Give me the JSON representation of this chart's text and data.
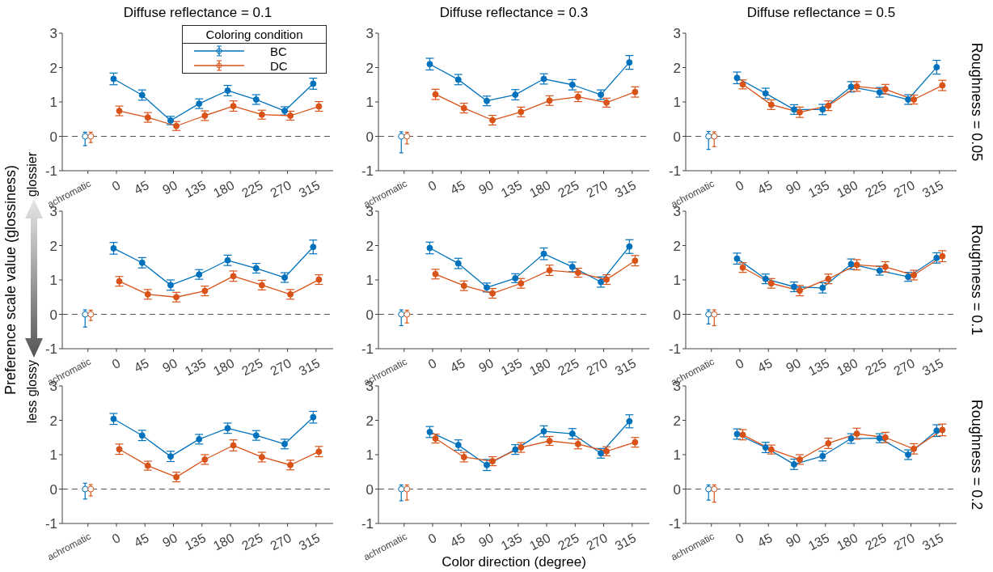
{
  "chart_data": [
    {
      "type": "line",
      "title": "Diffuse reflectance = 0.1",
      "categories": [
        "achromatic",
        "0",
        "45",
        "90",
        "135",
        "180",
        "225",
        "270",
        "315"
      ],
      "ylim": [
        -1,
        3
      ],
      "yticks": [
        -1,
        0,
        1,
        2,
        3
      ],
      "marker": "circle",
      "legend": "top right",
      "legend_title": "Coloring condition",
      "ref_lines": [
        {
          "axis": "y",
          "value": 0,
          "line_style": "dashed"
        }
      ],
      "series": [
        {
          "name": "BC",
          "color": "#0072bd",
          "values": [
            null,
            1.67,
            1.2,
            0.46,
            0.95,
            1.33,
            1.07,
            0.74,
            1.53
          ],
          "errors": [
            null,
            0.17,
            0.15,
            0.12,
            0.14,
            0.15,
            0.14,
            0.12,
            0.16
          ]
        },
        {
          "name": "DC",
          "color": "#d95319",
          "values": [
            null,
            0.74,
            0.55,
            0.3,
            0.6,
            0.88,
            0.63,
            0.6,
            0.87
          ],
          "errors": [
            null,
            0.14,
            0.14,
            0.13,
            0.14,
            0.15,
            0.13,
            0.13,
            0.14
          ]
        },
        {
          "type": "scatter",
          "color": "#0072bd",
          "x": [
            "achromatic"
          ],
          "values": [
            0
          ],
          "errors": [
            [
              -0.27,
              0.12
            ]
          ]
        },
        {
          "type": "scatter",
          "color": "#d95319",
          "x": [
            "achromatic"
          ],
          "values": [
            0
          ],
          "errors": [
            [
              -0.18,
              0.12
            ]
          ]
        }
      ]
    },
    {
      "type": "line",
      "title": "Diffuse reflectance = 0.3",
      "categories": [
        "achromatic",
        "0",
        "45",
        "90",
        "135",
        "180",
        "225",
        "270",
        "315"
      ],
      "ylim": [
        -1,
        3
      ],
      "yticks": [
        -1,
        0,
        1,
        2,
        3
      ],
      "marker": "circle",
      "ref_lines": [
        {
          "axis": "y",
          "value": 0,
          "line_style": "dashed"
        }
      ],
      "series": [
        {
          "color": "#0072bd",
          "values": [
            null,
            2.1,
            1.65,
            1.03,
            1.21,
            1.67,
            1.5,
            1.21,
            2.15
          ],
          "errors": [
            null,
            0.17,
            0.15,
            0.14,
            0.15,
            0.15,
            0.15,
            0.14,
            0.2
          ]
        },
        {
          "color": "#d95319",
          "values": [
            null,
            1.22,
            0.82,
            0.47,
            0.71,
            1.04,
            1.15,
            0.98,
            1.29
          ],
          "errors": [
            null,
            0.15,
            0.14,
            0.14,
            0.14,
            0.14,
            0.14,
            0.13,
            0.15
          ]
        },
        {
          "type": "scatter",
          "color": "#0072bd",
          "x": [
            "achromatic"
          ],
          "values": [
            0
          ],
          "errors": [
            [
              -0.48,
              0.13
            ]
          ]
        },
        {
          "type": "scatter",
          "color": "#d95319",
          "x": [
            "achromatic"
          ],
          "values": [
            0
          ],
          "errors": [
            [
              -0.22,
              0.12
            ]
          ]
        }
      ]
    },
    {
      "type": "line",
      "title": "Diffuse reflectance = 0.5",
      "categories": [
        "achromatic",
        "0",
        "45",
        "90",
        "135",
        "180",
        "225",
        "270",
        "315"
      ],
      "ylim": [
        -1,
        3
      ],
      "yticks": [
        -1,
        0,
        1,
        2,
        3
      ],
      "marker": "circle",
      "ref_lines": [
        {
          "axis": "y",
          "value": 0,
          "line_style": "dashed"
        }
      ],
      "annotations": [
        "Roughness = 0.05"
      ],
      "series": [
        {
          "color": "#0072bd",
          "values": [
            null,
            1.7,
            1.25,
            0.78,
            0.78,
            1.44,
            1.28,
            1.07,
            2.01
          ],
          "errors": [
            null,
            0.17,
            0.15,
            0.14,
            0.15,
            0.15,
            0.14,
            0.14,
            0.2
          ]
        },
        {
          "color": "#d95319",
          "values": [
            null,
            1.51,
            0.92,
            0.7,
            0.89,
            1.45,
            1.37,
            1.07,
            1.48
          ],
          "errors": [
            null,
            0.13,
            0.14,
            0.15,
            0.14,
            0.14,
            0.14,
            0.13,
            0.15
          ]
        },
        {
          "type": "scatter",
          "color": "#0072bd",
          "x": [
            "achromatic"
          ],
          "values": [
            0
          ],
          "errors": [
            [
              -0.38,
              0.14
            ]
          ]
        },
        {
          "type": "scatter",
          "color": "#d95319",
          "x": [
            "achromatic"
          ],
          "values": [
            0
          ],
          "errors": [
            [
              -0.3,
              0.13
            ]
          ]
        }
      ]
    },
    {
      "type": "line",
      "categories": [
        "achromatic",
        "0",
        "45",
        "90",
        "135",
        "180",
        "225",
        "270",
        "315"
      ],
      "ylim": [
        -1,
        3
      ],
      "yticks": [
        -1,
        0,
        1,
        2,
        3
      ],
      "marker": "circle",
      "ylabel": "Preference scale value (glossiness)",
      "annotations": [
        "glossier",
        "less glossy"
      ],
      "ref_lines": [
        {
          "axis": "y",
          "value": 0,
          "line_style": "dashed"
        }
      ],
      "series": [
        {
          "color": "#0072bd",
          "values": [
            null,
            1.92,
            1.5,
            0.85,
            1.16,
            1.57,
            1.34,
            1.07,
            1.96
          ],
          "errors": [
            null,
            0.17,
            0.15,
            0.15,
            0.14,
            0.15,
            0.14,
            0.14,
            0.2
          ]
        },
        {
          "color": "#d95319",
          "values": [
            null,
            0.96,
            0.58,
            0.5,
            0.68,
            1.11,
            0.85,
            0.58,
            1.01
          ],
          "errors": [
            null,
            0.14,
            0.14,
            0.14,
            0.14,
            0.15,
            0.14,
            0.14,
            0.14
          ]
        },
        {
          "type": "scatter",
          "color": "#0072bd",
          "x": [
            "achromatic"
          ],
          "values": [
            0
          ],
          "errors": [
            [
              -0.37,
              0.13
            ]
          ]
        },
        {
          "type": "scatter",
          "color": "#d95319",
          "x": [
            "achromatic"
          ],
          "values": [
            0
          ],
          "errors": [
            [
              -0.18,
              0.12
            ]
          ]
        }
      ]
    },
    {
      "type": "line",
      "categories": [
        "achromatic",
        "0",
        "45",
        "90",
        "135",
        "180",
        "225",
        "270",
        "315"
      ],
      "ylim": [
        -1,
        3
      ],
      "yticks": [
        -1,
        0,
        1,
        2,
        3
      ],
      "marker": "circle",
      "ref_lines": [
        {
          "axis": "y",
          "value": 0,
          "line_style": "dashed"
        }
      ],
      "series": [
        {
          "color": "#0072bd",
          "values": [
            null,
            1.93,
            1.48,
            0.78,
            1.05,
            1.76,
            1.38,
            0.94,
            1.97
          ],
          "errors": [
            null,
            0.17,
            0.15,
            0.13,
            0.13,
            0.17,
            0.14,
            0.15,
            0.2
          ]
        },
        {
          "color": "#d95319",
          "values": [
            null,
            1.17,
            0.83,
            0.61,
            0.9,
            1.28,
            1.21,
            1.01,
            1.56
          ],
          "errors": [
            null,
            0.14,
            0.14,
            0.14,
            0.14,
            0.15,
            0.13,
            0.14,
            0.15
          ]
        },
        {
          "type": "scatter",
          "color": "#0072bd",
          "x": [
            "achromatic"
          ],
          "values": [
            0
          ],
          "errors": [
            [
              -0.33,
              0.13
            ]
          ]
        },
        {
          "type": "scatter",
          "color": "#d95319",
          "x": [
            "achromatic"
          ],
          "values": [
            0
          ],
          "errors": [
            [
              -0.25,
              0.12
            ]
          ]
        }
      ]
    },
    {
      "type": "line",
      "categories": [
        "achromatic",
        "0",
        "45",
        "90",
        "135",
        "180",
        "225",
        "270",
        "315"
      ],
      "ylim": [
        -1,
        3
      ],
      "yticks": [
        -1,
        0,
        1,
        2,
        3
      ],
      "marker": "circle",
      "ref_lines": [
        {
          "axis": "y",
          "value": 0,
          "line_style": "dashed"
        }
      ],
      "annotations": [
        "Roughness = 0.1"
      ],
      "series": [
        {
          "color": "#0072bd",
          "values": [
            null,
            1.62,
            1.03,
            0.8,
            0.77,
            1.46,
            1.27,
            1.09,
            1.64
          ],
          "errors": [
            null,
            0.16,
            0.14,
            0.14,
            0.15,
            0.15,
            0.13,
            0.13,
            0.15
          ]
        },
        {
          "color": "#d95319",
          "values": [
            null,
            1.36,
            0.9,
            0.69,
            1.03,
            1.44,
            1.38,
            1.14,
            1.69
          ],
          "errors": [
            null,
            0.14,
            0.14,
            0.15,
            0.14,
            0.15,
            0.15,
            0.14,
            0.16
          ]
        },
        {
          "type": "scatter",
          "color": "#0072bd",
          "x": [
            "achromatic"
          ],
          "values": [
            0
          ],
          "errors": [
            [
              -0.28,
              0.13
            ]
          ]
        },
        {
          "type": "scatter",
          "color": "#d95319",
          "x": [
            "achromatic"
          ],
          "values": [
            0
          ],
          "errors": [
            [
              -0.33,
              0.13
            ]
          ]
        }
      ]
    },
    {
      "type": "line",
      "categories": [
        "achromatic",
        "0",
        "45",
        "90",
        "135",
        "180",
        "225",
        "270",
        "315"
      ],
      "ylim": [
        -1,
        3
      ],
      "yticks": [
        -1,
        0,
        1,
        2,
        3
      ],
      "marker": "circle",
      "ref_lines": [
        {
          "axis": "y",
          "value": 0,
          "line_style": "dashed"
        }
      ],
      "series": [
        {
          "color": "#0072bd",
          "values": [
            null,
            2.04,
            1.56,
            0.95,
            1.45,
            1.77,
            1.56,
            1.31,
            2.09
          ],
          "errors": [
            null,
            0.16,
            0.15,
            0.15,
            0.14,
            0.15,
            0.14,
            0.14,
            0.17
          ]
        },
        {
          "color": "#d95319",
          "values": [
            null,
            1.16,
            0.68,
            0.35,
            0.86,
            1.27,
            0.93,
            0.7,
            1.09
          ],
          "errors": [
            null,
            0.15,
            0.13,
            0.14,
            0.14,
            0.16,
            0.14,
            0.14,
            0.15
          ]
        },
        {
          "type": "scatter",
          "color": "#0072bd",
          "x": [
            "achromatic"
          ],
          "values": [
            0
          ],
          "errors": [
            [
              -0.29,
              0.17
            ]
          ]
        },
        {
          "type": "scatter",
          "color": "#d95319",
          "x": [
            "achromatic"
          ],
          "values": [
            0
          ],
          "errors": [
            [
              -0.2,
              0.13
            ]
          ]
        }
      ]
    },
    {
      "type": "line",
      "categories": [
        "achromatic",
        "0",
        "45",
        "90",
        "135",
        "180",
        "225",
        "270",
        "315"
      ],
      "ylim": [
        -1,
        3
      ],
      "yticks": [
        -1,
        0,
        1,
        2,
        3
      ],
      "marker": "circle",
      "xlabel": "Color direction (degree)",
      "ref_lines": [
        {
          "axis": "y",
          "value": 0,
          "line_style": "dashed"
        }
      ],
      "series": [
        {
          "color": "#0072bd",
          "values": [
            null,
            1.66,
            1.28,
            0.7,
            1.15,
            1.68,
            1.61,
            1.04,
            1.97
          ],
          "errors": [
            null,
            0.16,
            0.15,
            0.16,
            0.14,
            0.16,
            0.15,
            0.14,
            0.19
          ]
        },
        {
          "color": "#d95319",
          "values": [
            null,
            1.47,
            0.93,
            0.81,
            1.21,
            1.4,
            1.31,
            1.1,
            1.36
          ],
          "errors": [
            null,
            0.13,
            0.14,
            0.13,
            0.14,
            0.13,
            0.14,
            0.13,
            0.14
          ]
        },
        {
          "type": "scatter",
          "color": "#0072bd",
          "x": [
            "achromatic"
          ],
          "values": [
            0
          ],
          "errors": [
            [
              -0.34,
              0.12
            ]
          ]
        },
        {
          "type": "scatter",
          "color": "#d95319",
          "x": [
            "achromatic"
          ],
          "values": [
            0
          ],
          "errors": [
            [
              -0.32,
              0.12
            ]
          ]
        }
      ]
    },
    {
      "type": "line",
      "categories": [
        "achromatic",
        "0",
        "45",
        "90",
        "135",
        "180",
        "225",
        "270",
        "315"
      ],
      "ylim": [
        -1,
        3
      ],
      "yticks": [
        -1,
        0,
        1,
        2,
        3
      ],
      "marker": "circle",
      "ref_lines": [
        {
          "axis": "y",
          "value": 0,
          "line_style": "dashed"
        }
      ],
      "annotations": [
        "Roughness = 0.2"
      ],
      "series": [
        {
          "color": "#0072bd",
          "values": [
            null,
            1.6,
            1.21,
            0.72,
            0.96,
            1.47,
            1.48,
            1.0,
            1.7
          ],
          "errors": [
            null,
            0.15,
            0.15,
            0.15,
            0.14,
            0.14,
            0.13,
            0.14,
            0.17
          ]
        },
        {
          "color": "#d95319",
          "values": [
            null,
            1.58,
            1.15,
            0.86,
            1.33,
            1.61,
            1.5,
            1.17,
            1.72
          ],
          "errors": [
            null,
            0.15,
            0.13,
            0.14,
            0.15,
            0.16,
            0.15,
            0.15,
            0.17
          ]
        },
        {
          "type": "scatter",
          "color": "#0072bd",
          "x": [
            "achromatic"
          ],
          "values": [
            0
          ],
          "errors": [
            [
              -0.32,
              0.12
            ]
          ]
        },
        {
          "type": "scatter",
          "color": "#d95319",
          "x": [
            "achromatic"
          ],
          "values": [
            0
          ],
          "errors": [
            [
              -0.38,
              0.12
            ]
          ]
        }
      ]
    }
  ]
}
